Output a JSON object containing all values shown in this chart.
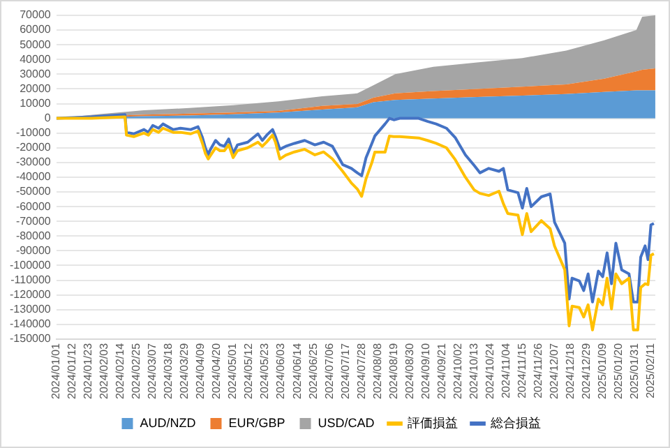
{
  "chart_data": {
    "type": "area",
    "stacked": true,
    "grid": "y",
    "legend": "bottom",
    "xlim": [
      "2024-01-01",
      "2025-02-14"
    ],
    "xticks": [
      {
        "value": "2024-01-01",
        "label": "2024/01/01"
      },
      {
        "value": "2024-01-12",
        "label": "2024/01/12"
      },
      {
        "value": "2024-01-23",
        "label": "2024/01/23"
      },
      {
        "value": "2024-02-03",
        "label": "2024/02/03"
      },
      {
        "value": "2024-02-14",
        "label": "2024/02/14"
      },
      {
        "value": "2024-02-25",
        "label": "2024/02/25"
      },
      {
        "value": "2024-03-07",
        "label": "2024/03/07"
      },
      {
        "value": "2024-03-18",
        "label": "2024/03/18"
      },
      {
        "value": "2024-03-29",
        "label": "2024/03/29"
      },
      {
        "value": "2024-04-09",
        "label": "2024/04/09"
      },
      {
        "value": "2024-04-20",
        "label": "2024/04/20"
      },
      {
        "value": "2024-05-01",
        "label": "2024/05/01"
      },
      {
        "value": "2024-05-12",
        "label": "2024/05/12"
      },
      {
        "value": "2024-05-23",
        "label": "2024/05/23"
      },
      {
        "value": "2024-06-03",
        "label": "2024/06/03"
      },
      {
        "value": "2024-06-14",
        "label": "2024/06/14"
      },
      {
        "value": "2024-06-25",
        "label": "2024/06/25"
      },
      {
        "value": "2024-07-06",
        "label": "2024/07/06"
      },
      {
        "value": "2024-07-17",
        "label": "2024/07/17"
      },
      {
        "value": "2024-07-28",
        "label": "2024/07/28"
      },
      {
        "value": "2024-08-08",
        "label": "2024/08/08"
      },
      {
        "value": "2024-08-19",
        "label": "2024/08/19"
      },
      {
        "value": "2024-08-30",
        "label": "2024/08/30"
      },
      {
        "value": "2024-09-10",
        "label": "2024/09/10"
      },
      {
        "value": "2024-09-21",
        "label": "2024/09/21"
      },
      {
        "value": "2024-10-02",
        "label": "2024/10/02"
      },
      {
        "value": "2024-10-13",
        "label": "2024/10/13"
      },
      {
        "value": "2024-10-24",
        "label": "2024/10/24"
      },
      {
        "value": "2024-11-04",
        "label": "2024/11/04"
      },
      {
        "value": "2024-11-15",
        "label": "2024/11/15"
      },
      {
        "value": "2024-11-26",
        "label": "2024/11/26"
      },
      {
        "value": "2024-12-07",
        "label": "2024/12/07"
      },
      {
        "value": "2024-12-18",
        "label": "2024/12/18"
      },
      {
        "value": "2024-12-29",
        "label": "2024/12/29"
      },
      {
        "value": "2025-01-09",
        "label": "2025/01/09"
      },
      {
        "value": "2025-01-20",
        "label": "2025/01/20"
      },
      {
        "value": "2025-01-31",
        "label": "2025/01/31"
      },
      {
        "value": "2025-02-11",
        "label": "2025/02/11"
      }
    ],
    "ylim": [
      -150000,
      70000
    ],
    "yticks": [
      -150000,
      -140000,
      -130000,
      -120000,
      -110000,
      -100000,
      -90000,
      -80000,
      -70000,
      -60000,
      -50000,
      -40000,
      -30000,
      -20000,
      -10000,
      0,
      10000,
      20000,
      30000,
      40000,
      50000,
      60000,
      70000
    ],
    "x": [
      "2024-01-01",
      "2024-02-01",
      "2024-03-01",
      "2024-04-01",
      "2024-05-01",
      "2024-06-01",
      "2024-07-01",
      "2024-07-25",
      "2024-08-05",
      "2024-08-20",
      "2024-09-15",
      "2024-10-15",
      "2024-11-15",
      "2024-12-15",
      "2025-01-10",
      "2025-02-01",
      "2025-02-05",
      "2025-02-14"
    ],
    "series": [
      {
        "name": "AUD/NZD",
        "color": "#5b9bd5",
        "values": [
          0,
          800,
          1500,
          2000,
          2800,
          4000,
          6000,
          7500,
          11000,
          12500,
          13500,
          14500,
          15500,
          16500,
          18000,
          19000,
          19000,
          19000
        ]
      },
      {
        "name": "EUR/GBP",
        "color": "#ed7d31",
        "values": [
          0,
          700,
          1000,
          1200,
          1200,
          1000,
          2500,
          2300,
          3000,
          4500,
          5000,
          5500,
          6000,
          6500,
          9000,
          13000,
          14000,
          15000
        ]
      },
      {
        "name": "USD/CAD",
        "color": "#a5a5a5",
        "values": [
          0,
          1500,
          3000,
          3800,
          5000,
          6500,
          6500,
          7200,
          8500,
          13000,
          16500,
          18000,
          19500,
          23000,
          26000,
          28000,
          36000,
          36000
        ]
      },
      {
        "name": "評価損益",
        "type": "line",
        "color": "#ffc000",
        "x": [
          "2024-01-01",
          "2024-01-25",
          "2024-02-17",
          "2024-02-18",
          "2024-02-23",
          "2024-03-01",
          "2024-03-04",
          "2024-03-07",
          "2024-03-11",
          "2024-03-14",
          "2024-03-21",
          "2024-03-26",
          "2024-04-02",
          "2024-04-07",
          "2024-04-10",
          "2024-04-12",
          "2024-04-14",
          "2024-04-15",
          "2024-04-19",
          "2024-04-22",
          "2024-04-25",
          "2024-04-28",
          "2024-05-01",
          "2024-05-04",
          "2024-05-11",
          "2024-05-18",
          "2024-05-21",
          "2024-05-24",
          "2024-05-28",
          "2024-05-30",
          "2024-06-02",
          "2024-06-06",
          "2024-06-12",
          "2024-06-19",
          "2024-06-26",
          "2024-07-02",
          "2024-07-08",
          "2024-07-15",
          "2024-07-21",
          "2024-07-25",
          "2024-07-28",
          "2024-07-31",
          "2024-08-04",
          "2024-08-06",
          "2024-08-13",
          "2024-08-16",
          "2024-08-19",
          "2024-08-23",
          "2024-09-05",
          "2024-09-11",
          "2024-09-17",
          "2024-09-24",
          "2024-09-30",
          "2024-10-07",
          "2024-10-13",
          "2024-10-17",
          "2024-10-23",
          "2024-10-30",
          "2024-11-02",
          "2024-11-05",
          "2024-11-12",
          "2024-11-15",
          "2024-11-18",
          "2024-11-21",
          "2024-11-28",
          "2024-12-04",
          "2024-12-07",
          "2024-12-14",
          "2024-12-17",
          "2024-12-19",
          "2024-12-24",
          "2024-12-27",
          "2024-12-30",
          "2025-01-02",
          "2025-01-06",
          "2025-01-09",
          "2025-01-12",
          "2025-01-15",
          "2025-01-18",
          "2025-01-22",
          "2025-01-27",
          "2025-01-30",
          "2025-02-02",
          "2025-02-04",
          "2025-02-07",
          "2025-02-09",
          "2025-02-11",
          "2025-02-13"
        ],
        "values": [
          0,
          0,
          1000,
          -11400,
          -12400,
          -10000,
          -11400,
          -7600,
          -9500,
          -6700,
          -9500,
          -9500,
          -10500,
          -8600,
          -17000,
          -23800,
          -27600,
          -26000,
          -20000,
          -22000,
          -22000,
          -18000,
          -26700,
          -22000,
          -20000,
          -16200,
          -19000,
          -16000,
          -11400,
          -16200,
          -27600,
          -25000,
          -22800,
          -21000,
          -24800,
          -22800,
          -27600,
          -36000,
          -44000,
          -48000,
          -53000,
          -41000,
          -30000,
          -23000,
          -23000,
          -12000,
          -12400,
          -12400,
          -13300,
          -15000,
          -17000,
          -20000,
          -28000,
          -40000,
          -48600,
          -51000,
          -52400,
          -49500,
          -58000,
          -64700,
          -65700,
          -79000,
          -64700,
          -77000,
          -69500,
          -75000,
          -86700,
          -102800,
          -141000,
          -127600,
          -128600,
          -135000,
          -126700,
          -143800,
          -122800,
          -126700,
          -108600,
          -129500,
          -105700,
          -112400,
          -108600,
          -143800,
          -143800,
          -115000,
          -112400,
          -113000,
          -93000,
          -92000
        ]
      },
      {
        "name": "総合損益",
        "type": "line",
        "color": "#4472c4",
        "x": [
          "2024-01-01",
          "2024-01-25",
          "2024-02-17",
          "2024-02-18",
          "2024-02-23",
          "2024-03-01",
          "2024-03-04",
          "2024-03-07",
          "2024-03-11",
          "2024-03-14",
          "2024-03-21",
          "2024-03-26",
          "2024-04-02",
          "2024-04-07",
          "2024-04-10",
          "2024-04-12",
          "2024-04-14",
          "2024-04-15",
          "2024-04-19",
          "2024-04-22",
          "2024-04-25",
          "2024-04-28",
          "2024-05-01",
          "2024-05-04",
          "2024-05-11",
          "2024-05-18",
          "2024-05-21",
          "2024-05-24",
          "2024-05-28",
          "2024-05-30",
          "2024-06-02",
          "2024-06-06",
          "2024-06-12",
          "2024-06-19",
          "2024-06-26",
          "2024-07-02",
          "2024-07-08",
          "2024-07-15",
          "2024-07-21",
          "2024-07-25",
          "2024-07-28",
          "2024-07-31",
          "2024-08-04",
          "2024-08-06",
          "2024-08-13",
          "2024-08-16",
          "2024-08-19",
          "2024-08-23",
          "2024-09-05",
          "2024-09-11",
          "2024-09-17",
          "2024-09-24",
          "2024-09-30",
          "2024-10-07",
          "2024-10-13",
          "2024-10-17",
          "2024-10-23",
          "2024-10-30",
          "2024-11-02",
          "2024-11-05",
          "2024-11-12",
          "2024-11-15",
          "2024-11-18",
          "2024-11-21",
          "2024-11-28",
          "2024-12-04",
          "2024-12-07",
          "2024-12-14",
          "2024-12-17",
          "2024-12-19",
          "2024-12-24",
          "2024-12-27",
          "2024-12-30",
          "2025-01-02",
          "2025-01-06",
          "2025-01-09",
          "2025-01-12",
          "2025-01-15",
          "2025-01-18",
          "2025-01-22",
          "2025-01-27",
          "2025-01-30",
          "2025-02-02",
          "2025-02-04",
          "2025-02-07",
          "2025-02-09",
          "2025-02-11",
          "2025-02-13"
        ],
        "values": [
          0,
          1000,
          2500,
          -9500,
          -10500,
          -7600,
          -9500,
          -4800,
          -6700,
          -3800,
          -7600,
          -6700,
          -7600,
          -5700,
          -13000,
          -20000,
          -24800,
          -22000,
          -15000,
          -18000,
          -19000,
          -14000,
          -23800,
          -18000,
          -16200,
          -10500,
          -15000,
          -11400,
          -7600,
          -12400,
          -21000,
          -19000,
          -17000,
          -15000,
          -18000,
          -16200,
          -19000,
          -31400,
          -34000,
          -37000,
          -39000,
          -26700,
          -17000,
          -12000,
          -3800,
          0,
          -1000,
          0,
          0,
          -2000,
          -3800,
          -6700,
          -13000,
          -24800,
          -32000,
          -37000,
          -34000,
          -36000,
          -34000,
          -48600,
          -50500,
          -61000,
          -47600,
          -60000,
          -53300,
          -51400,
          -70500,
          -84800,
          -122800,
          -108600,
          -110500,
          -117000,
          -105700,
          -124800,
          -103800,
          -107600,
          -91400,
          -112400,
          -84800,
          -103000,
          -105700,
          -124800,
          -124800,
          -94300,
          -86700,
          -96000,
          -72400,
          -71400
        ]
      }
    ]
  }
}
